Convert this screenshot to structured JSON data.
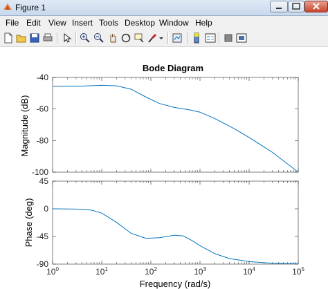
{
  "window": {
    "title": "Figure 1"
  },
  "menu": [
    "File",
    "Edit",
    "View",
    "Insert",
    "Tools",
    "Desktop",
    "Window",
    "Help"
  ],
  "toolbar_icons": [
    "new-figure-icon",
    "open-file-icon",
    "save-icon",
    "print-icon",
    "pointer-icon",
    "zoom-in-icon",
    "zoom-out-icon",
    "pan-icon",
    "rotate-3d-icon",
    "data-cursor-icon",
    "brush-icon",
    "link-plot-icon",
    "colorbar-icon",
    "legend-icon",
    "hide-plot-tools-icon",
    "show-plot-tools-icon"
  ],
  "colors": {
    "line": "#0072bd",
    "axes": "#262626",
    "grid": "#e6e6e6"
  },
  "chart_data": {
    "type": "line",
    "title": "Bode Diagram",
    "xlabel": "Frequency  (rad/s)",
    "x_scale": "log",
    "xlim": [
      1,
      100000
    ],
    "x_ticks": [
      "10^0",
      "10^1",
      "10^2",
      "10^3",
      "10^4",
      "10^5"
    ],
    "magnitude": {
      "ylabel": "Magnitude (dB)",
      "ylim": [
        -100,
        -40
      ],
      "y_ticks": [
        "-40",
        "-60",
        "-80",
        "-100"
      ],
      "x": [
        1,
        3,
        10,
        20,
        40,
        80,
        150,
        300,
        600,
        1000,
        2000,
        5000,
        10000,
        30000,
        100000
      ],
      "y": [
        -45.6,
        -45.6,
        -45.0,
        -45.3,
        -47.5,
        -52.5,
        -56.5,
        -59.0,
        -60.5,
        -62.0,
        -66.0,
        -72.5,
        -78.0,
        -87.5,
        -100.0
      ]
    },
    "phase": {
      "ylabel": "Phase (deg)",
      "ylim": [
        -90,
        45
      ],
      "y_ticks": [
        "45",
        "0",
        "-45",
        "-90"
      ],
      "x": [
        1,
        3,
        6,
        10,
        20,
        40,
        80,
        150,
        300,
        450,
        700,
        1000,
        2000,
        4000,
        10000,
        30000,
        100000
      ],
      "y": [
        0,
        -0.5,
        -2,
        -7,
        -22,
        -40,
        -48,
        -47,
        -43,
        -44,
        -52,
        -60,
        -73,
        -81,
        -86,
        -88.5,
        -89.5
      ]
    }
  }
}
